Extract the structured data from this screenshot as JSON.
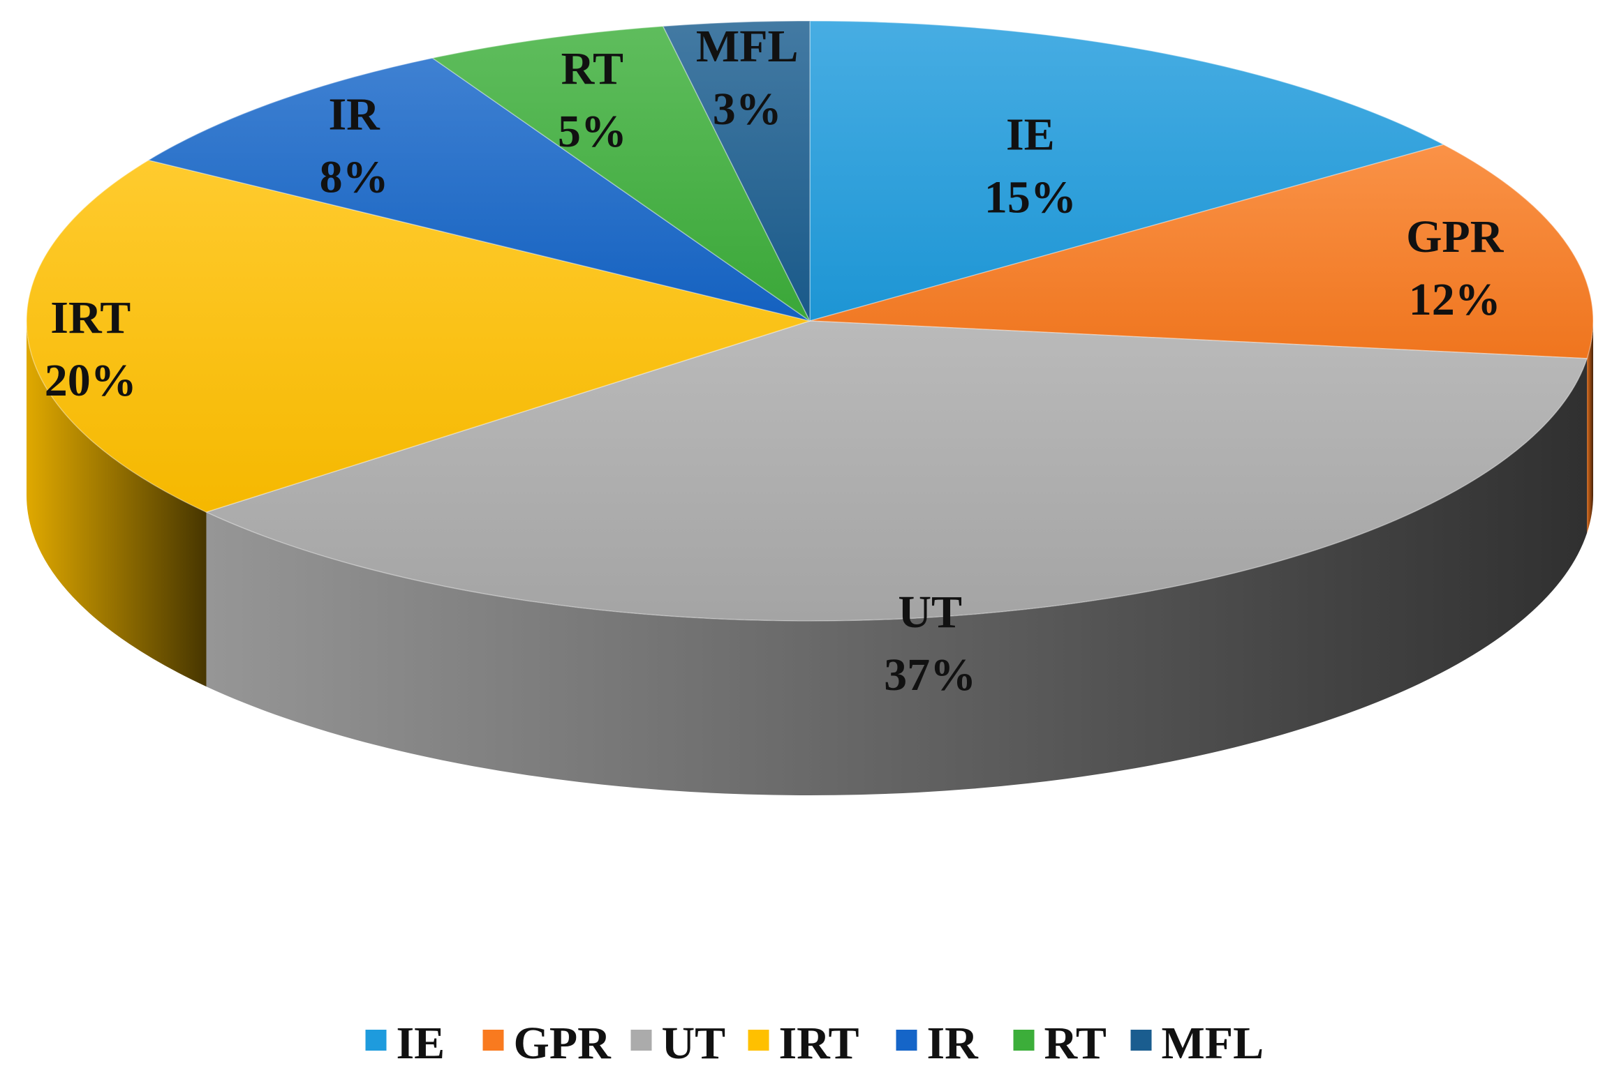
{
  "chart_data": {
    "type": "pie",
    "title": "",
    "categories": [
      "IE",
      "GPR",
      "UT",
      "IRT",
      "IR",
      "RT",
      "MFL"
    ],
    "values": [
      15,
      12,
      37,
      20,
      8,
      5,
      3
    ],
    "labels": [
      "15%",
      "12%",
      "37%",
      "20%",
      "8%",
      "5%",
      "3%"
    ],
    "colors": [
      "#1E9BDD",
      "#F97A1F",
      "#ABABAB",
      "#FFC000",
      "#1565C8",
      "#3CAE3A",
      "#1A5D8F"
    ],
    "style": "3d",
    "legend_position": "bottom"
  }
}
